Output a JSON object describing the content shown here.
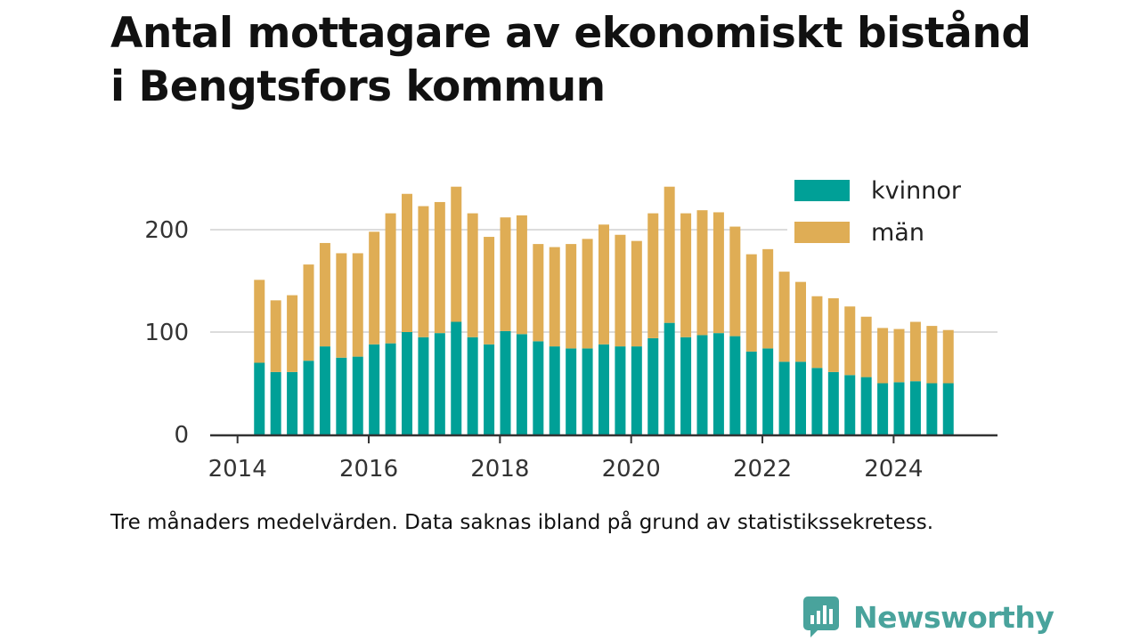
{
  "title_line1": "Antal mottagare av ekonomiskt bistånd",
  "title_line2": "i Bengtsfors kommun",
  "caption": "Tre månaders medelvärden. Data saknas ibland på grund av statistikssekretess.",
  "brand": {
    "name": "Newsworthy",
    "logo_icon": "bar-chart-speech-bubble-icon",
    "color": "#49a39c"
  },
  "chart_data": {
    "type": "bar",
    "stacked": true,
    "title": "Antal mottagare av ekonomiskt bistånd i Bengtsfors kommun",
    "xlabel": "",
    "ylabel": "",
    "x_ticks": [
      "2014",
      "2016",
      "2018",
      "2020",
      "2022",
      "2024"
    ],
    "y_ticks": [
      "0",
      "100",
      "200"
    ],
    "ylim": [
      0,
      240
    ],
    "xlim": [
      "2013-08",
      "2025-08"
    ],
    "grid": "horizontal",
    "legend_position": "top-right",
    "categories": [
      "2014-05",
      "2014-08",
      "2014-11",
      "2015-02",
      "2015-05",
      "2015-08",
      "2015-11",
      "2016-02",
      "2016-05",
      "2016-08",
      "2016-11",
      "2017-02",
      "2017-05",
      "2017-08",
      "2017-11",
      "2018-02",
      "2018-05",
      "2018-08",
      "2018-11",
      "2019-02",
      "2019-05",
      "2019-08",
      "2019-11",
      "2020-02",
      "2020-05",
      "2020-08",
      "2020-11",
      "2021-02",
      "2021-05",
      "2021-08",
      "2021-11",
      "2022-02",
      "2022-05",
      "2022-08",
      "2022-11",
      "2023-02",
      "2023-05",
      "2023-08",
      "2023-11",
      "2024-02",
      "2024-05",
      "2024-08",
      "2024-11"
    ],
    "series": [
      {
        "name": "kvinnor",
        "color": "#00a097",
        "values": [
          70,
          61,
          61,
          72,
          86,
          75,
          76,
          88,
          89,
          100,
          95,
          99,
          110,
          95,
          88,
          101,
          98,
          91,
          86,
          84,
          84,
          88,
          86,
          86,
          94,
          109,
          95,
          97,
          99,
          96,
          81,
          84,
          71,
          71,
          65,
          61,
          58,
          56,
          50,
          51,
          52,
          50,
          50
        ]
      },
      {
        "name": "män",
        "color": "#dfad55",
        "values": [
          81,
          70,
          75,
          94,
          101,
          102,
          101,
          110,
          127,
          135,
          128,
          128,
          132,
          121,
          105,
          111,
          116,
          95,
          97,
          102,
          107,
          117,
          109,
          103,
          122,
          133,
          121,
          122,
          118,
          107,
          95,
          97,
          88,
          78,
          70,
          72,
          67,
          59,
          54,
          52,
          58,
          56,
          52
        ]
      }
    ]
  }
}
